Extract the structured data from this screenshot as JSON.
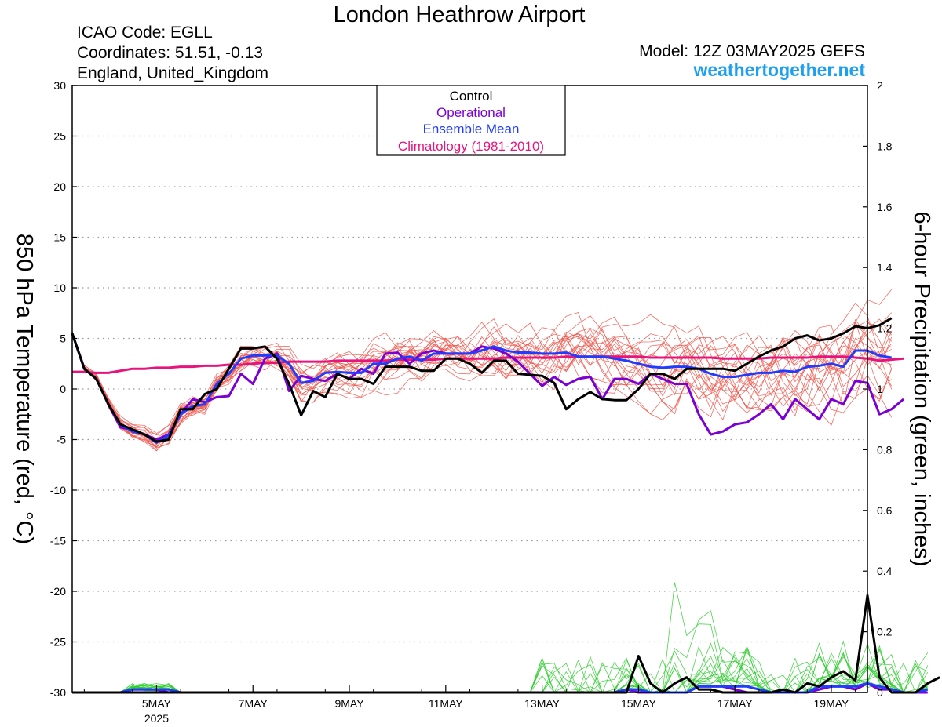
{
  "header": {
    "title": "London Heathrow Airport",
    "icao": "ICAO Code: EGLL",
    "coords": "Coordinates: 51.51, -0.13",
    "region": "England, United_Kingdom",
    "model": "Model: 12Z 03MAY2025 GEFS",
    "site": "weathertogether.net"
  },
  "colors": {
    "control": "#000000",
    "operational": "#7a00d4",
    "ensemble_mean": "#1f3cff",
    "climatology": "#e6157e",
    "members_temp": "#f0554a",
    "members_precip": "#2ecc2e",
    "site": "#1ea0f0"
  },
  "chart_data": {
    "type": "line",
    "ylabel": "850 hPa Temperature (red, °C)",
    "y2label": "6-hour Precipitation (green, inches)",
    "xlim": [
      0,
      66
    ],
    "ylim": [
      -30,
      30
    ],
    "y2lim": [
      0,
      2
    ],
    "yticks": [
      30,
      25,
      20,
      15,
      10,
      5,
      0,
      -5,
      -10,
      -15,
      -20,
      -25,
      -30
    ],
    "y2ticks": [
      "2",
      "1.8",
      "1.6",
      "1.4",
      "1.2",
      "1",
      "0.8",
      "0.6",
      "0.4",
      "0.2",
      "0"
    ],
    "xticks": [
      {
        "x": 7,
        "label": "5MAY",
        "sub": "2025"
      },
      {
        "x": 15,
        "label": "7MAY"
      },
      {
        "x": 23,
        "label": "9MAY"
      },
      {
        "x": 31,
        "label": "11MAY"
      },
      {
        "x": 39,
        "label": "13MAY"
      },
      {
        "x": 47,
        "label": "15MAY"
      },
      {
        "x": 55,
        "label": "17MAY"
      },
      {
        "x": 63,
        "label": "19MAY"
      }
    ],
    "grid": true,
    "legend": {
      "position": "top-center",
      "entries": [
        {
          "name": "Control",
          "color": "#000000"
        },
        {
          "name": "Operational",
          "color": "#7a00d4"
        },
        {
          "name": "Ensemble Mean",
          "color": "#1f3cff"
        },
        {
          "name": "Climatology (1981-2010)",
          "color": "#e6157e"
        }
      ]
    },
    "series": [
      {
        "name": "Control",
        "axis": "temperature",
        "values": [
          5.5,
          2,
          1,
          -1.5,
          -3.5,
          -4,
          -4.5,
          -5.2,
          -5,
          -2,
          -2,
          -0.5,
          0,
          2,
          4,
          4,
          4.2,
          3,
          0.5,
          -2.6,
          -0.2,
          -0.8,
          1.5,
          1,
          1,
          0.5,
          2.2,
          2.2,
          2.2,
          1.8,
          1.8,
          3,
          3,
          2.5,
          1.6,
          2.8,
          2.8,
          1.5,
          1.4,
          1.3,
          0.6,
          -2,
          -1,
          -0.3,
          -1,
          -1.1,
          -1.1,
          0,
          1.5,
          1.5,
          1,
          2,
          2,
          2,
          2,
          1.8,
          2.5,
          3.2,
          3.8,
          4.2,
          5,
          5.3,
          4.8,
          5,
          5.5,
          6.2,
          6,
          6.3,
          7
        ]
      },
      {
        "name": "Operational",
        "axis": "temperature",
        "values": [
          5.5,
          2,
          1,
          -1.5,
          -3.8,
          -4,
          -4.5,
          -5,
          -4.5,
          -2.5,
          -1,
          -1.3,
          -0.8,
          -0.7,
          1.5,
          0.5,
          3,
          3.5,
          -0.2,
          1.3,
          1,
          0.8,
          1.5,
          1,
          2,
          1.5,
          3.5,
          3.6,
          2.5,
          3.5,
          3.8,
          3.5,
          3.5,
          3.5,
          4.2,
          4,
          3.5,
          2.7,
          1.5,
          0.3,
          1.2,
          0.4,
          1,
          1.2,
          -1,
          1,
          1,
          0.5,
          1.5,
          1,
          0.5,
          0.5,
          -2.5,
          -4.5,
          -4.2,
          -3.5,
          -3.3,
          -2.5,
          -1.5,
          -3,
          -1,
          -2,
          -3,
          -1,
          -1.5,
          0.8,
          0.6,
          -2.5,
          -2,
          -1
        ]
      },
      {
        "name": "Ensemble Mean",
        "axis": "temperature",
        "values": [
          5.5,
          2,
          1,
          -1.5,
          -3.5,
          -4.2,
          -4.5,
          -5.3,
          -4.6,
          -2.5,
          -1.7,
          -1.5,
          0.5,
          1.5,
          3,
          3.3,
          3.3,
          3.3,
          2.5,
          0.6,
          0.8,
          1.6,
          1.7,
          1.6,
          1.6,
          2.5,
          2.5,
          3,
          3.2,
          2.8,
          3.5,
          3.5,
          3.5,
          3.5,
          3.8,
          4.2,
          3.8,
          3.6,
          3.6,
          3.5,
          3.5,
          3.6,
          3.2,
          3.2,
          3.2,
          3,
          2.8,
          2.5,
          2.2,
          2.1,
          2.2,
          2.2,
          2,
          1.5,
          1.2,
          1.2,
          1.4,
          1.6,
          1.6,
          1.8,
          1.7,
          2.2,
          2.3,
          2.5,
          2.2,
          3.8,
          3.8,
          3.3,
          3.1
        ]
      },
      {
        "name": "Climatology (1981-2010)",
        "axis": "temperature",
        "values": [
          1.7,
          1.7,
          1.6,
          1.6,
          1.8,
          2,
          2,
          2.1,
          2.1,
          2.2,
          2.2,
          2.3,
          2.3,
          2.4,
          2.4,
          2.5,
          2.6,
          2.6,
          2.7,
          2.7,
          2.7,
          2.7,
          2.8,
          2.8,
          2.8,
          2.8,
          2.8,
          2.9,
          2.9,
          2.9,
          2.9,
          3,
          3,
          3,
          3,
          3,
          3.1,
          3.1,
          3.1,
          3.1,
          3.1,
          3.2,
          3.2,
          3.2,
          3.2,
          3.2,
          3.2,
          3.2,
          3.1,
          3.1,
          3.1,
          3.1,
          3.1,
          3.1,
          3,
          3,
          3,
          3,
          3.1,
          3.1,
          3.1,
          3.1,
          3.2,
          3.2,
          3.2,
          3.1,
          3,
          2.8,
          2.9,
          3
        ]
      },
      {
        "name": "Control",
        "axis": "precipitation",
        "values": [
          0,
          0,
          0,
          0,
          0,
          0,
          0,
          0,
          0,
          0,
          0,
          0,
          0,
          0,
          0,
          0,
          0,
          0,
          0,
          0,
          0,
          0,
          0,
          0,
          0,
          0,
          0,
          0,
          0,
          0,
          0,
          0,
          0,
          0,
          0,
          0,
          0,
          0,
          0,
          0,
          0,
          0,
          0,
          0,
          0,
          0,
          0,
          0.12,
          0.03,
          0,
          0.03,
          0.05,
          0.01,
          0.01,
          0,
          0,
          0,
          0,
          0,
          0.01,
          0,
          0.03,
          0.02,
          0.05,
          0.07,
          0.04,
          0.32,
          0.05,
          0,
          0,
          0,
          0.03,
          0.05
        ]
      },
      {
        "name": "Operational",
        "axis": "precipitation",
        "values": [
          0,
          0,
          0,
          0,
          0,
          0.01,
          0.01,
          0.01,
          0,
          0,
          0,
          0,
          0,
          0,
          0,
          0,
          0,
          0,
          0,
          0,
          0,
          0,
          0,
          0,
          0,
          0,
          0,
          0,
          0,
          0,
          0,
          0,
          0,
          0,
          0,
          0,
          0,
          0,
          0,
          0,
          0,
          0,
          0,
          0,
          0,
          0,
          0.01,
          0,
          0,
          0,
          0,
          0,
          0.02,
          0.02,
          0.02,
          0.01,
          0,
          0,
          0,
          0,
          0,
          0,
          0.01,
          0.02,
          0.02,
          0.01,
          0.03,
          0.01,
          0.01,
          0,
          0,
          0
        ]
      },
      {
        "name": "Ensemble Mean",
        "axis": "precipitation",
        "values": [
          0,
          0,
          0,
          0,
          0,
          0.01,
          0.01,
          0.01,
          0.01,
          0,
          0,
          0,
          0,
          0,
          0,
          0,
          0,
          0,
          0,
          0,
          0,
          0,
          0,
          0,
          0,
          0,
          0,
          0,
          0,
          0,
          0,
          0,
          0,
          0,
          0,
          0,
          0,
          0,
          0,
          0,
          0,
          0,
          0,
          0,
          0,
          0,
          0.01,
          0.01,
          0,
          0,
          0,
          0,
          0.02,
          0.02,
          0.02,
          0.02,
          0.02,
          0.01,
          0,
          0,
          0,
          0,
          0.02,
          0.02,
          0.02,
          0.02,
          0.03,
          0.02,
          0.01,
          0,
          0,
          0.01
        ]
      }
    ]
  }
}
